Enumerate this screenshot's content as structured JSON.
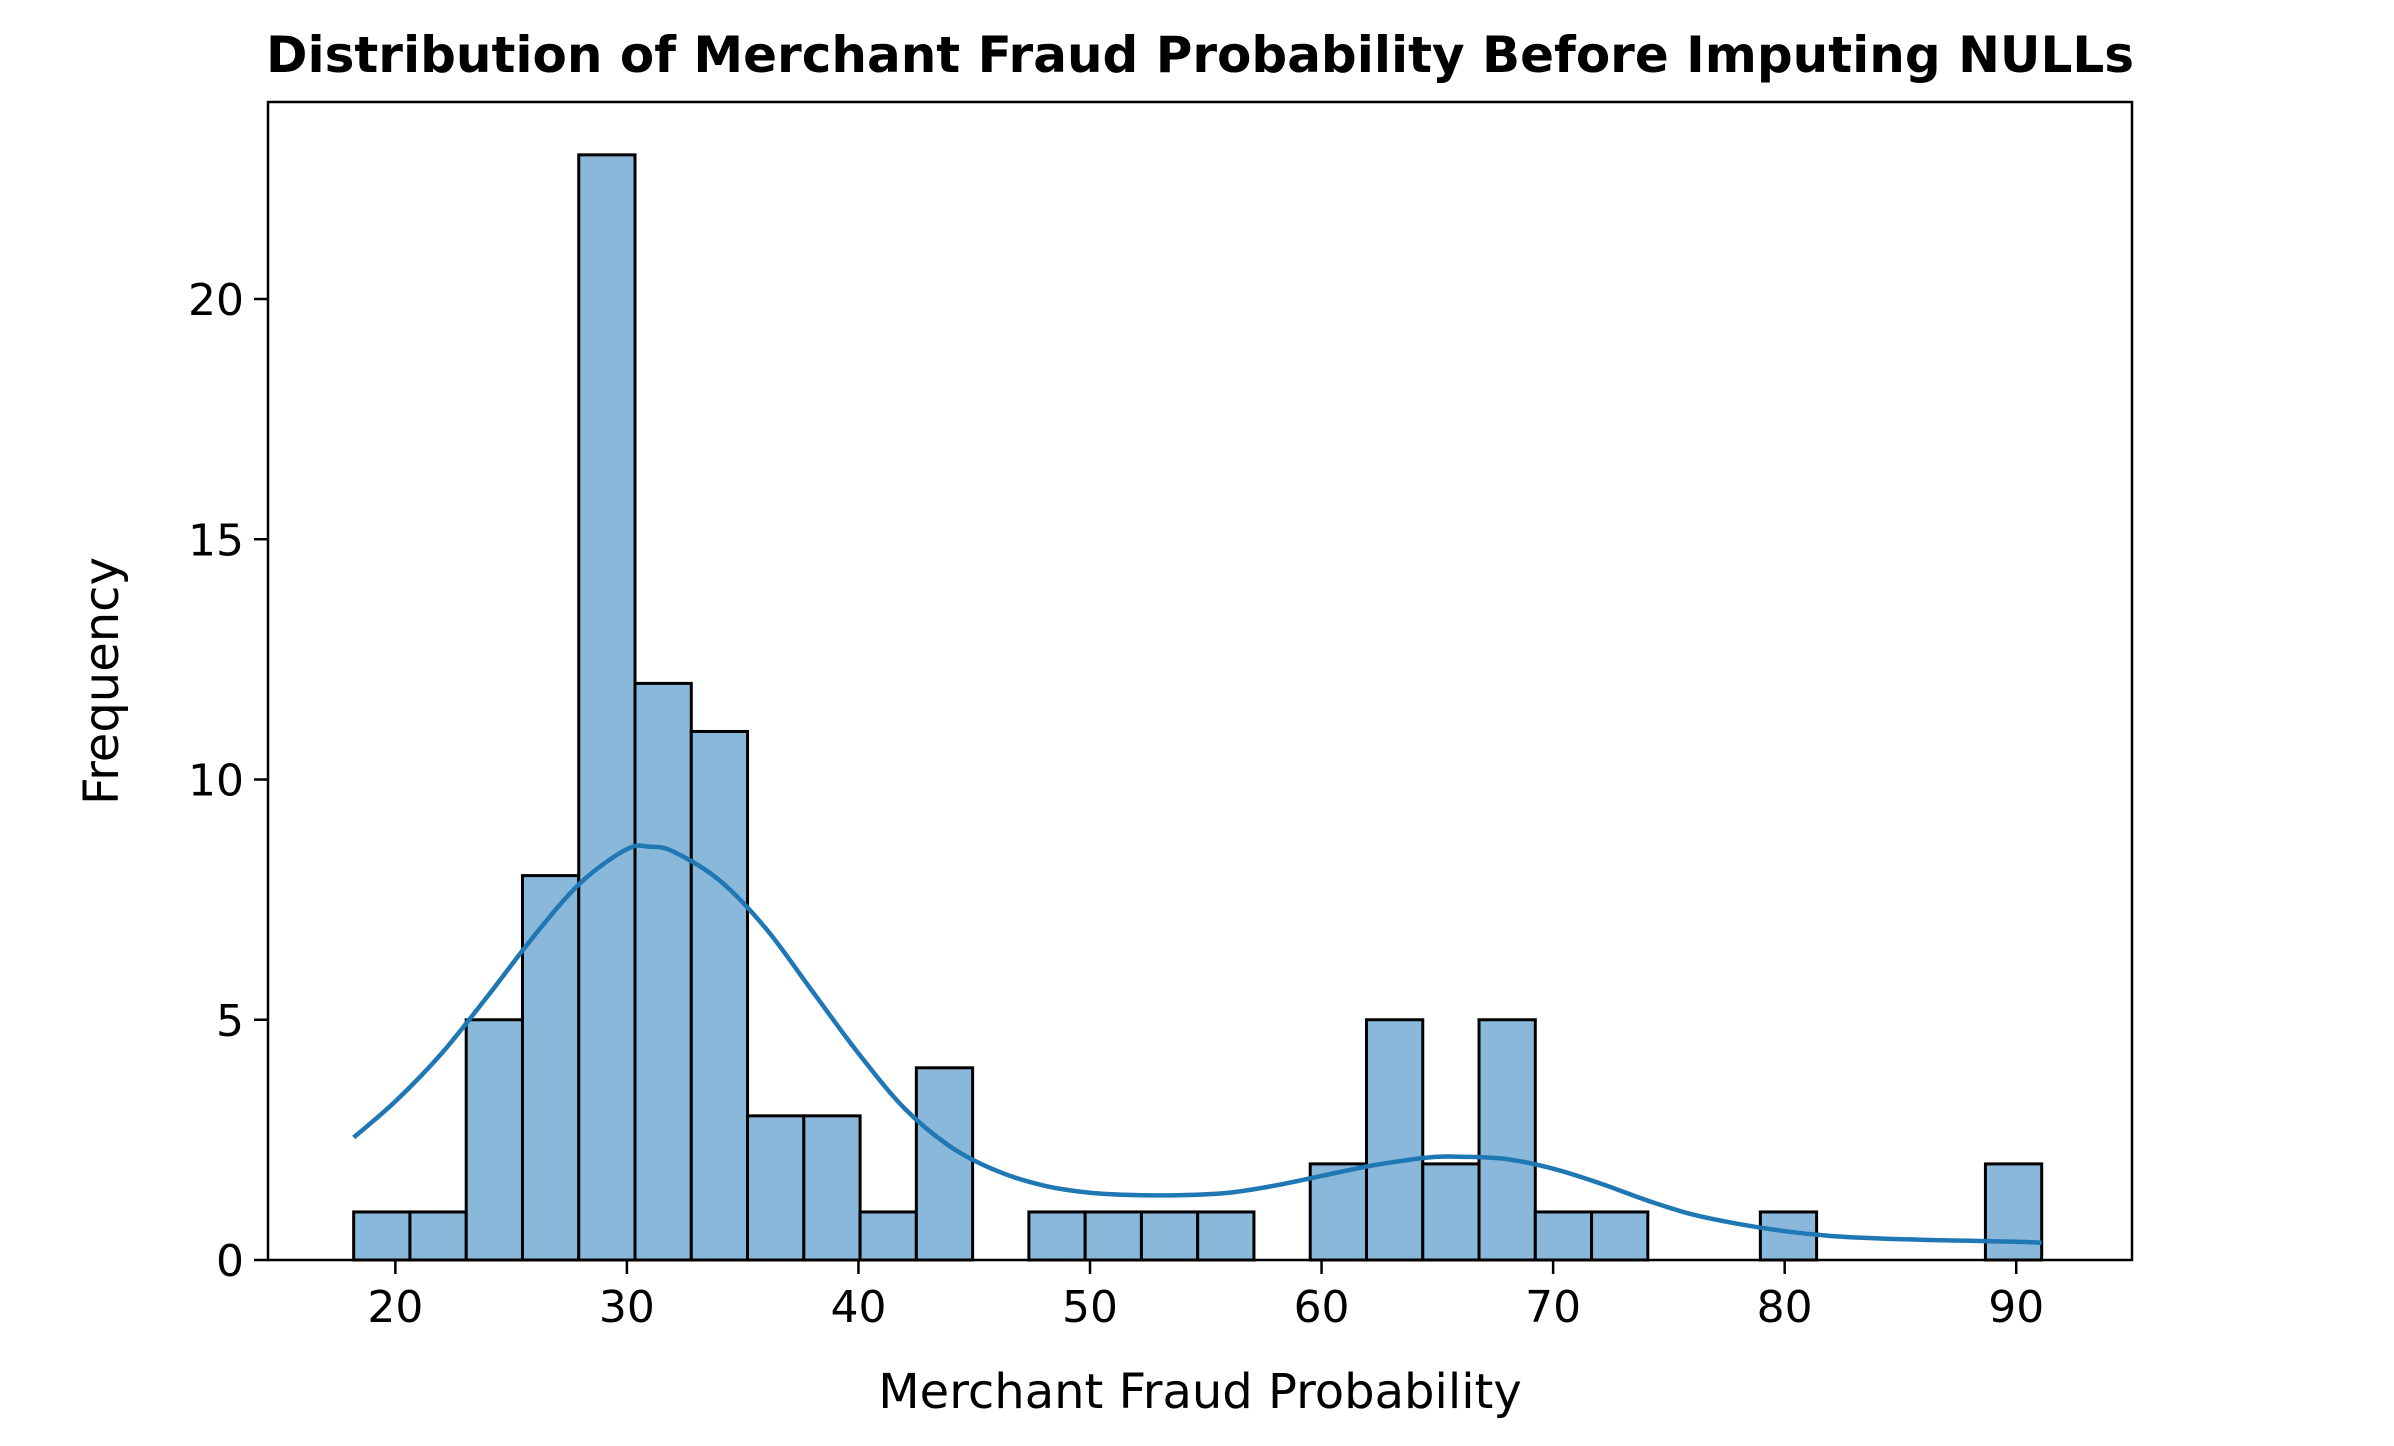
{
  "chart_data": {
    "type": "bar",
    "subtype": "histogram-with-kde",
    "title": "Distribution of Merchant Fraud Probability Before Imputing NULLs",
    "xlabel": "Merchant Fraud Probability",
    "ylabel": "Frequency",
    "xlim": [
      14.5,
      95
    ],
    "ylim": [
      0,
      24.1
    ],
    "x_ticks": [
      20,
      30,
      40,
      50,
      60,
      70,
      80,
      90
    ],
    "y_ticks": [
      0,
      5,
      10,
      15,
      20
    ],
    "grid": false,
    "legend": "none",
    "bar_color": "#8ab8da",
    "edge_color": "#000000",
    "kde_color": "#1f77b4",
    "bins": [
      {
        "x0": 18.2,
        "x1": 20.63,
        "count": 1
      },
      {
        "x0": 20.63,
        "x1": 23.06,
        "count": 1
      },
      {
        "x0": 23.06,
        "x1": 25.49,
        "count": 5
      },
      {
        "x0": 25.49,
        "x1": 27.92,
        "count": 8
      },
      {
        "x0": 27.92,
        "x1": 30.35,
        "count": 23
      },
      {
        "x0": 30.35,
        "x1": 32.78,
        "count": 12
      },
      {
        "x0": 32.78,
        "x1": 35.21,
        "count": 11
      },
      {
        "x0": 35.21,
        "x1": 37.64,
        "count": 3
      },
      {
        "x0": 37.64,
        "x1": 40.07,
        "count": 3
      },
      {
        "x0": 40.07,
        "x1": 42.5,
        "count": 1
      },
      {
        "x0": 42.5,
        "x1": 44.93,
        "count": 4
      },
      {
        "x0": 47.36,
        "x1": 49.79,
        "count": 1
      },
      {
        "x0": 49.79,
        "x1": 52.22,
        "count": 1
      },
      {
        "x0": 52.22,
        "x1": 54.65,
        "count": 1
      },
      {
        "x0": 54.65,
        "x1": 57.08,
        "count": 1
      },
      {
        "x0": 59.51,
        "x1": 61.94,
        "count": 2
      },
      {
        "x0": 61.94,
        "x1": 64.37,
        "count": 5
      },
      {
        "x0": 64.37,
        "x1": 66.8,
        "count": 2
      },
      {
        "x0": 66.8,
        "x1": 69.23,
        "count": 5
      },
      {
        "x0": 69.23,
        "x1": 71.66,
        "count": 1
      },
      {
        "x0": 71.66,
        "x1": 74.09,
        "count": 1
      },
      {
        "x0": 78.95,
        "x1": 81.38,
        "count": 1
      },
      {
        "x0": 88.67,
        "x1": 91.1,
        "count": 2
      }
    ],
    "kde": {
      "x": [
        18.2,
        20,
        22,
        24,
        26,
        28,
        30,
        31,
        32,
        34,
        36,
        38,
        40,
        42,
        44,
        46,
        48,
        50,
        52,
        54,
        56,
        58,
        60,
        62,
        64,
        65,
        66,
        68,
        70,
        72,
        74,
        76,
        78,
        80,
        82,
        84,
        86,
        88,
        90,
        91.1
      ],
      "y": [
        2.55,
        3.3,
        4.3,
        5.5,
        6.75,
        7.85,
        8.55,
        8.6,
        8.5,
        7.9,
        6.9,
        5.6,
        4.3,
        3.15,
        2.35,
        1.85,
        1.55,
        1.4,
        1.35,
        1.35,
        1.4,
        1.55,
        1.75,
        1.95,
        2.1,
        2.15,
        2.15,
        2.1,
        1.9,
        1.6,
        1.25,
        0.95,
        0.75,
        0.6,
        0.5,
        0.45,
        0.42,
        0.4,
        0.38,
        0.36
      ]
    }
  }
}
